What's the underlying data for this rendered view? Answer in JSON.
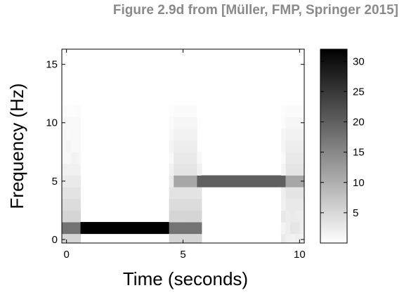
{
  "figure_title": "Figure 2.9d from [Müller, FMP, Springer 2015]",
  "chart_data": {
    "type": "heatmap",
    "title": "",
    "xlabel": "Time (seconds)",
    "ylabel": "Frequency (Hz)",
    "xlim": [
      -0.2,
      10.2
    ],
    "ylim": [
      -0.3,
      16.3
    ],
    "xticks": [
      0,
      5,
      10
    ],
    "yticks": [
      0,
      5,
      10,
      15
    ],
    "colorbar": {
      "range": [
        0,
        32
      ],
      "ticks": [
        5,
        10,
        15,
        20,
        25,
        30
      ],
      "colormap": "gray-reversed"
    },
    "grid": false,
    "segments": [
      {
        "t_start": 0,
        "t_end": 5,
        "frequency_hz": 1,
        "magnitude": 32
      },
      {
        "t_start": 5,
        "t_end": 10,
        "frequency_hz": 5,
        "magnitude": 20
      }
    ]
  }
}
